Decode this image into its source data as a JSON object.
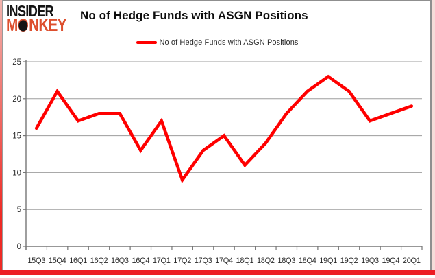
{
  "header": {
    "logo_line1": "INSIDER",
    "logo_line2_pre": "M",
    "logo_line2_post": "NKEY",
    "title": "No of Hedge Funds with ASGN Positions"
  },
  "legend": {
    "label": "No of Hedge Funds with ASGN Positions"
  },
  "colors": {
    "series": "#ff0000",
    "logo_black": "#141414",
    "logo_accent": "#dd4f2e",
    "frame_red": "#ed1c24",
    "grid": "#9d9d9d",
    "axis": "#767676",
    "label_text": "#2a2a2a"
  },
  "chart_data": {
    "type": "line",
    "title": "No of Hedge Funds with ASGN Positions",
    "categories": [
      "15Q3",
      "15Q4",
      "16Q1",
      "16Q2",
      "16Q3",
      "16Q4",
      "17Q1",
      "17Q2",
      "17Q3",
      "17Q4",
      "18Q1",
      "18Q2",
      "18Q3",
      "18Q4",
      "19Q1",
      "19Q2",
      "19Q3",
      "19Q4",
      "20Q1"
    ],
    "series": [
      {
        "name": "No of Hedge Funds with ASGN Positions",
        "values": [
          16,
          21,
          17,
          18,
          18,
          13,
          17,
          9,
          13,
          15,
          11,
          14,
          18,
          21,
          23,
          21,
          17,
          18,
          19
        ]
      }
    ],
    "xlabel": "",
    "ylabel": "",
    "ylim": [
      0,
      25
    ],
    "ytick_step": 5,
    "grid": "horizontal",
    "legend_position": "top"
  }
}
